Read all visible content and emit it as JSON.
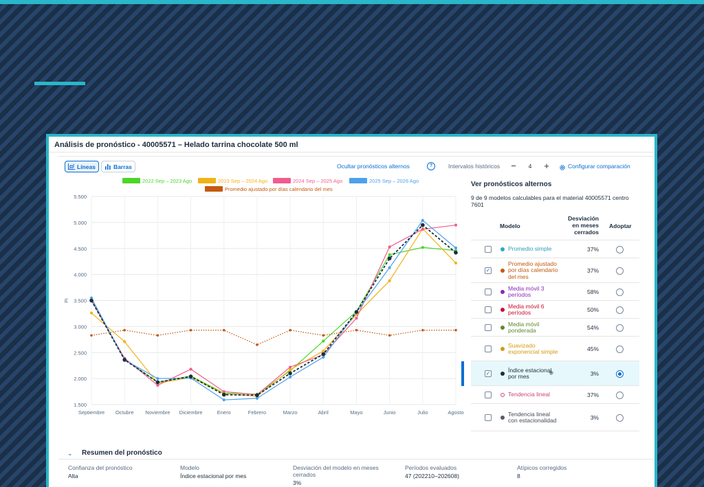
{
  "panel": {
    "title": "Análisis de pronóstico - 40005571 – Helado tarrina chocolate 500 ml"
  },
  "toolbar": {
    "lines_label": "Líneas",
    "bars_label": "Barras",
    "hide_alternates": "Ocultar pronósticos alternos",
    "help_glyph": "?",
    "intervals_label": "Intervalos históricos",
    "intervals_value": "4",
    "minus": "−",
    "plus": "+",
    "configure": "Configurar comparación"
  },
  "chart_data": {
    "type": "line",
    "categories": [
      "Septiembre",
      "Octubre",
      "Noviembre",
      "Diciembre",
      "Enero",
      "Febrero",
      "Marzo",
      "Abril",
      "Mayo",
      "Junio",
      "Julio",
      "Agosto"
    ],
    "ylabel": "Pi",
    "ylim": [
      1500,
      5500
    ],
    "yticks": [
      1500,
      2000,
      2500,
      3000,
      3500,
      4000,
      4500,
      5000,
      5500
    ],
    "ytick_labels": [
      "1.500",
      "2.000",
      "2.500",
      "3.000",
      "3.500",
      "4.000",
      "4.500",
      "5.000",
      "5.500"
    ],
    "grid": true,
    "legend_position": "top",
    "series": [
      {
        "name": "2022 Sep – 2023 Ago",
        "color": "#4cd629",
        "legend": true,
        "style": "solid",
        "values": [
          3510,
          2370,
          1930,
          2050,
          1720,
          1700,
          2150,
          2720,
          3290,
          4380,
          4520,
          4460
        ]
      },
      {
        "name": "2023 Sep – 2024 Ago",
        "color": "#f3b215",
        "legend": true,
        "style": "solid",
        "values": [
          3260,
          2710,
          1910,
          2020,
          1710,
          1660,
          2170,
          2530,
          3230,
          3880,
          4880,
          4220
        ]
      },
      {
        "name": "2024 Sep – 2025 Ago",
        "color": "#f25c8c",
        "legend": true,
        "style": "solid",
        "values": [
          3500,
          2390,
          1870,
          2180,
          1750,
          1690,
          2220,
          2460,
          3160,
          4530,
          4870,
          4950
        ]
      },
      {
        "name": "2025 Sep – 2026 Ago",
        "color": "#4ba2ec",
        "legend": true,
        "style": "solid",
        "values": [
          3550,
          2360,
          2000,
          2010,
          1590,
          1620,
          2030,
          2410,
          3270,
          4130,
          5040,
          4510
        ]
      },
      {
        "name": "Promedio ajustado por días calendario del mes",
        "color": "#c45a0f",
        "legend": true,
        "style": "dotted",
        "values": [
          2830,
          2930,
          2830,
          2930,
          2930,
          2650,
          2930,
          2830,
          2930,
          2830,
          2930,
          2930
        ]
      },
      {
        "name": "",
        "color": "#1d2d3e",
        "legend": false,
        "style": "dashed",
        "values": [
          3500,
          2360,
          1930,
          2040,
          1690,
          1680,
          2100,
          2470,
          3280,
          4310,
          4950,
          4420
        ]
      }
    ]
  },
  "alternates": {
    "title": "Ver pronósticos alternos",
    "subtitle": "9 de 9 modelos calculables para el material 40005571 centro 7601",
    "col_model": "Modelo",
    "col_deviation": "Desviación en meses cerrados",
    "col_adopt": "Adoptar",
    "rows": [
      {
        "name": "Promedio simple",
        "color": "#2a9fb8",
        "dot": "#2aa9c6",
        "pct": "37%",
        "checked": false,
        "adopted": false,
        "selected": false,
        "ring": false
      },
      {
        "name": "Promedio ajustado por días calendario del mes",
        "color": "#c45a0f",
        "dot": "#c45a0f",
        "pct": "37%",
        "checked": true,
        "adopted": false,
        "selected": false,
        "ring": false
      },
      {
        "name": "Media móvil 3 períodos",
        "color": "#8a2bb8",
        "dot": "#8a2bb8",
        "pct": "58%",
        "checked": false,
        "adopted": false,
        "selected": false,
        "ring": false
      },
      {
        "name": "Media móvil 6 períodos",
        "color": "#c8102e",
        "dot": "#c8102e",
        "pct": "50%",
        "checked": false,
        "adopted": false,
        "selected": false,
        "ring": false
      },
      {
        "name": "Media móvil ponderada",
        "color": "#5a8a2a",
        "dot": "#5a8a2a",
        "pct": "54%",
        "checked": false,
        "adopted": false,
        "selected": false,
        "ring": false
      },
      {
        "name": "Suavizado exponencial simple",
        "color": "#d49a12",
        "dot": "#d49a12",
        "pct": "45%",
        "checked": false,
        "adopted": false,
        "selected": false,
        "ring": false
      },
      {
        "name": "Índice estacional por mes",
        "color": "#1d2d3e",
        "dot": "#1d2d3e",
        "pct": "3%",
        "checked": true,
        "adopted": true,
        "selected": true,
        "ring": false
      },
      {
        "name": "Tendencia lineal",
        "color": "#d0427a",
        "dot": "#d0427a",
        "pct": "37%",
        "checked": false,
        "adopted": false,
        "selected": false,
        "ring": true
      },
      {
        "name": "Tendencia lineal con estacionalidad",
        "color": "#444c55",
        "dot": "#555c66",
        "pct": "3%",
        "checked": false,
        "adopted": false,
        "selected": false,
        "ring": false
      }
    ]
  },
  "summary": {
    "chevron": "⌄",
    "title": "Resumen del pronóstico",
    "columns": [
      {
        "label": "Confianza del pronóstico",
        "value": "Alta"
      },
      {
        "label": "Modelo",
        "value": "Índice estacional por mes"
      },
      {
        "label": "Desviación del modelo en meses cerrados",
        "value": "3%"
      },
      {
        "label": "Períodos evaluados",
        "value": "47 (202210–202608)"
      },
      {
        "label": "Atípicos corregidos",
        "value": "8"
      }
    ]
  }
}
